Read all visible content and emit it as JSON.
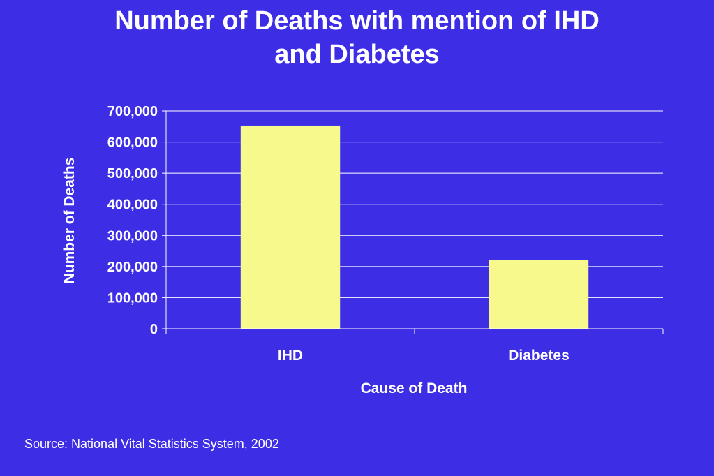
{
  "slide": {
    "title_line1": "Number of Deaths with mention of IHD",
    "title_line2": "and Diabetes",
    "source": "Source: National Vital Statistics System, 2002"
  },
  "colors": {
    "background": "#3d2ee6",
    "bar_fill": "#f7f98c",
    "gridline": "#ffffff",
    "text": "#ffffff"
  },
  "chart_data": {
    "type": "bar",
    "categories": [
      "IHD",
      "Diabetes"
    ],
    "values": [
      653000,
      222000
    ],
    "xlabel": "Cause of Death",
    "ylabel": "Number of Deaths",
    "ylim": [
      0,
      700000
    ],
    "yticks": [
      0,
      100000,
      200000,
      300000,
      400000,
      500000,
      600000,
      700000
    ],
    "ytick_labels": [
      "0",
      "100,000",
      "200,000",
      "300,000",
      "400,000",
      "500,000",
      "600,000",
      "700,000"
    ],
    "grid": true,
    "legend": "none"
  }
}
